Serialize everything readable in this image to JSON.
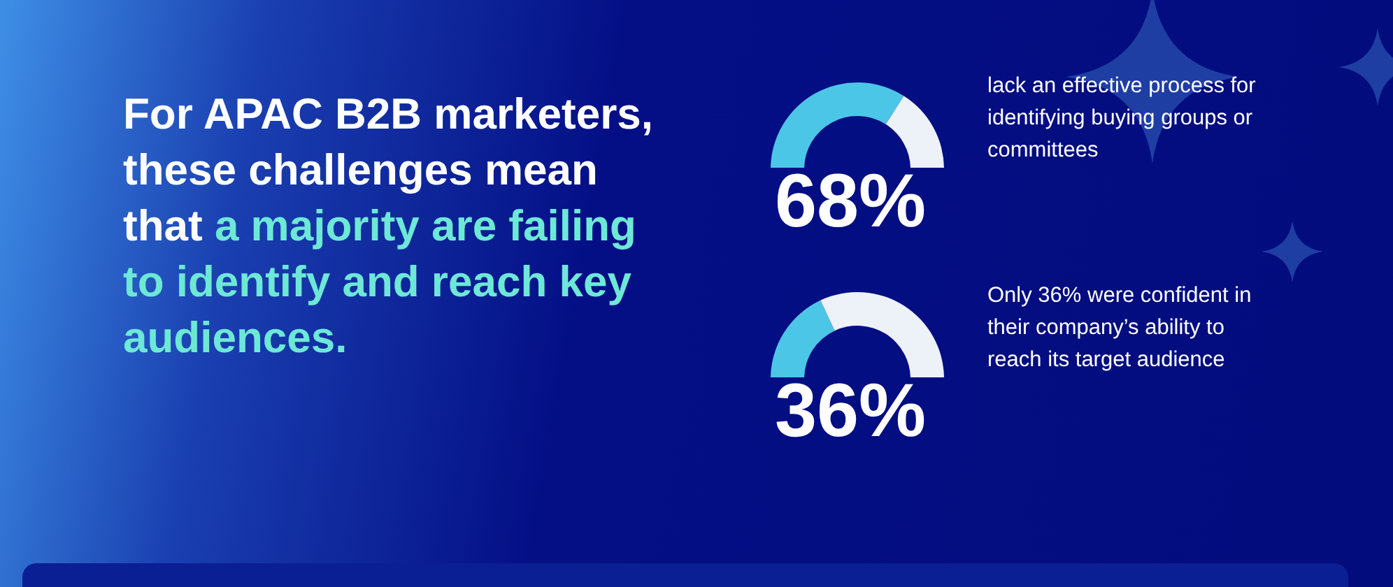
{
  "chart_data": [
    {
      "type": "other",
      "title": "For APAC B2B marketers, these challenges mean that",
      "subtitle": "a majority are failing to identify and reach key audiences."
    },
    {
      "type": "donut",
      "categories": [
        null,
        null
      ],
      "values": [
        68,
        32
      ],
      "colors": [
        "#4cc6e6",
        "#edf1f8"
      ],
      "title": "68%",
      "annotations": [
        "lack an effective process for identifying buying groups or committees"
      ]
    },
    {
      "type": "donut",
      "categories": [
        null,
        null
      ],
      "values": [
        36,
        64
      ],
      "colors": [
        "#4cc6e6",
        "#edf1f8"
      ],
      "title": "36%",
      "annotations": [
        "Only 36% were confident in their company’s ability to reach its target audience"
      ]
    }
  ]
}
